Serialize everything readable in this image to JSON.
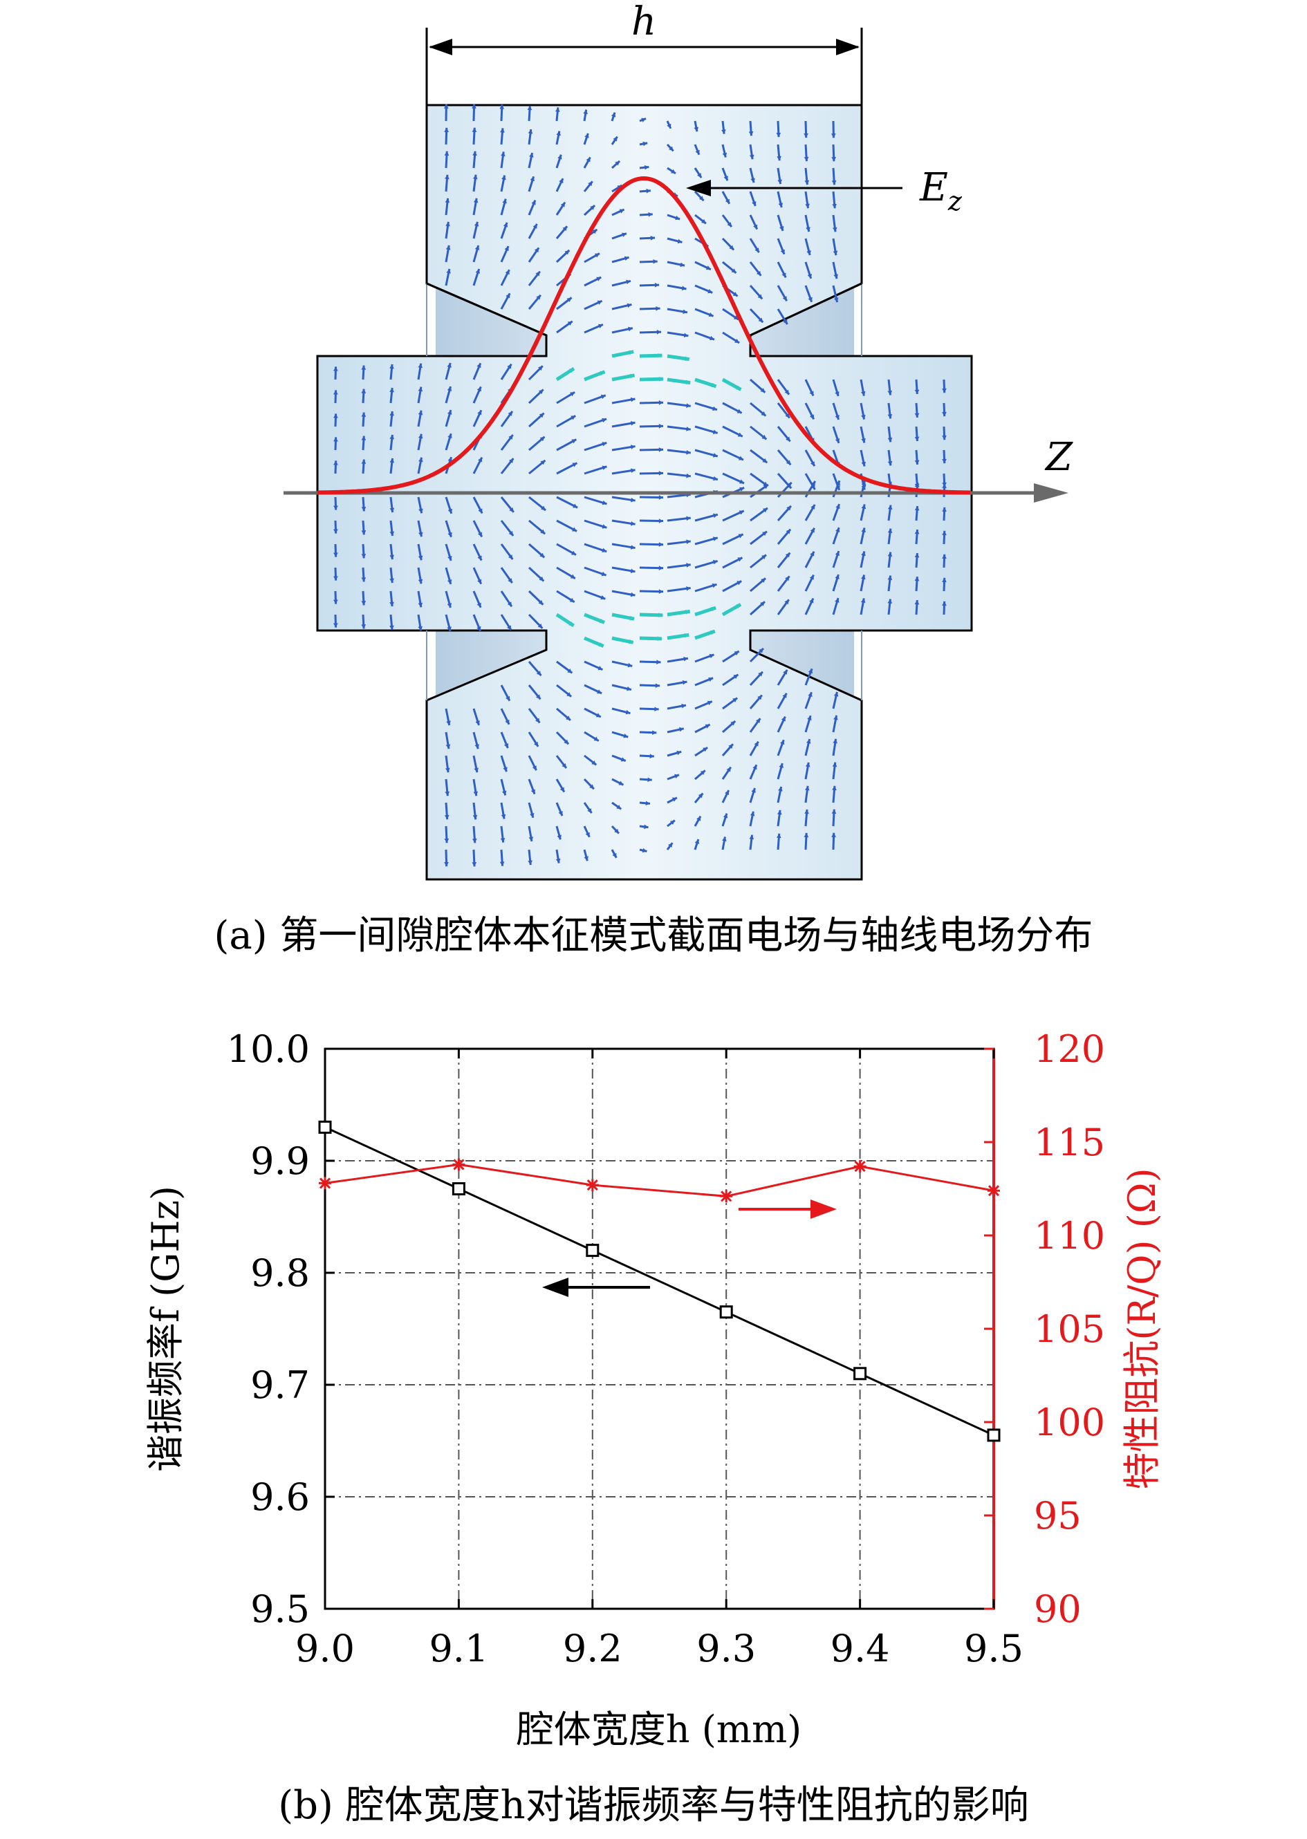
{
  "figure_a": {
    "dimension_label": "h",
    "curve_label": "E",
    "curve_label_sub": "z",
    "axis_label": "Z",
    "caption": "(a) 第一间隙腔体本征模式截面电场与轴线电场分布",
    "colors": {
      "curve": "#e3191c",
      "field_arrow": "#2f5fc4",
      "gap_arrow": "#2ec9c0",
      "body": "#d7e9f4",
      "axis": "#6a6a6a"
    }
  },
  "figure_b": {
    "caption": "(b) 腔体宽度h对谐振频率与特性阻抗的影响",
    "xlabel": "腔体宽度h (mm)",
    "ylabel_left": "谐振频率f (GHz)",
    "ylabel_right": "特性阻抗(R/Q) (Ω)",
    "x_ticks": [
      "9.0",
      "9.1",
      "9.2",
      "9.3",
      "9.4",
      "9.5"
    ],
    "y_left_ticks": [
      "9.5",
      "9.6",
      "9.7",
      "9.8",
      "9.9",
      "10.0"
    ],
    "y_right_ticks": [
      "90",
      "95",
      "100",
      "105",
      "110",
      "115",
      "120"
    ]
  },
  "chart_data": {
    "type": "line",
    "x": [
      9.0,
      9.1,
      9.2,
      9.3,
      9.4,
      9.5
    ],
    "xlabel": "腔体宽度h (mm)",
    "xlim": [
      9.0,
      9.5
    ],
    "grid": true,
    "series": [
      {
        "axis": "left",
        "color": "#000000",
        "marker": "square",
        "values": [
          9.93,
          9.875,
          9.82,
          9.765,
          9.71,
          9.655
        ]
      },
      {
        "axis": "right",
        "color": "#e3191c",
        "marker": "asterisk",
        "values": [
          112.8,
          113.8,
          112.7,
          112.1,
          113.7,
          112.4
        ]
      }
    ],
    "ylabel_left": "谐振频率f (GHz)",
    "ylim_left": [
      9.5,
      10.0
    ],
    "ylabel_right": "特性阻抗(R/Q) (Ω)",
    "ylim_right": [
      90,
      120
    ]
  }
}
